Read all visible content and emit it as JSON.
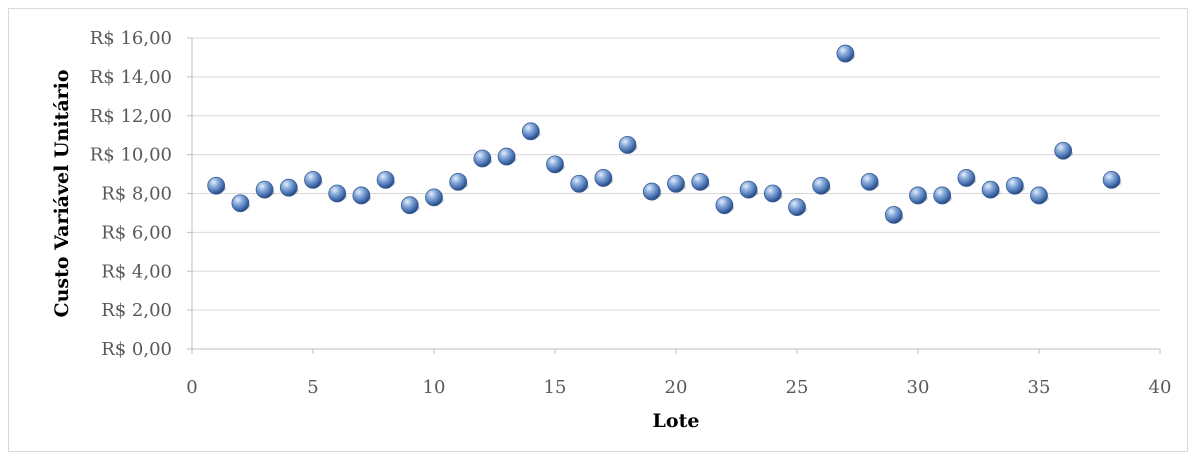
{
  "chart_data": {
    "type": "scatter",
    "title": "",
    "xlabel": "Lote",
    "ylabel": "Custo Variável Unitário",
    "xlim": [
      0,
      40
    ],
    "ylim": [
      0,
      16
    ],
    "x_ticks": [
      0,
      5,
      10,
      15,
      20,
      25,
      30,
      35,
      40
    ],
    "y_ticks": [
      0,
      2,
      4,
      6,
      8,
      10,
      12,
      14,
      16
    ],
    "x_tick_labels": [
      "0",
      "5",
      "10",
      "15",
      "20",
      "25",
      "30",
      "35",
      "40"
    ],
    "y_tick_labels": [
      "R$ 0,00",
      "R$ 2,00",
      "R$ 4,00",
      "R$ 6,00",
      "R$ 8,00",
      "R$ 10,00",
      "R$ 12,00",
      "R$ 14,00",
      "R$ 16,00"
    ],
    "grid": "horizontal",
    "legend": "none",
    "marker_color": "#4a74b4",
    "series": [
      {
        "x": [
          1,
          2,
          3,
          4,
          5,
          6,
          7,
          8,
          9,
          10,
          11,
          12,
          13,
          14,
          15,
          16,
          17,
          18,
          19,
          20,
          21,
          22,
          23,
          24,
          25,
          26,
          27,
          28,
          29,
          30,
          31,
          32,
          33,
          34,
          35,
          36,
          38
        ],
        "y": [
          8.4,
          7.5,
          8.2,
          8.3,
          8.7,
          8.0,
          7.9,
          8.7,
          7.4,
          7.8,
          8.6,
          9.8,
          9.9,
          11.2,
          9.5,
          8.5,
          8.8,
          10.5,
          8.1,
          8.5,
          8.6,
          7.4,
          8.2,
          8.0,
          7.3,
          8.4,
          15.2,
          8.6,
          6.9,
          7.9,
          7.9,
          8.8,
          8.2,
          8.4,
          7.9,
          10.2,
          8.7
        ]
      }
    ]
  }
}
